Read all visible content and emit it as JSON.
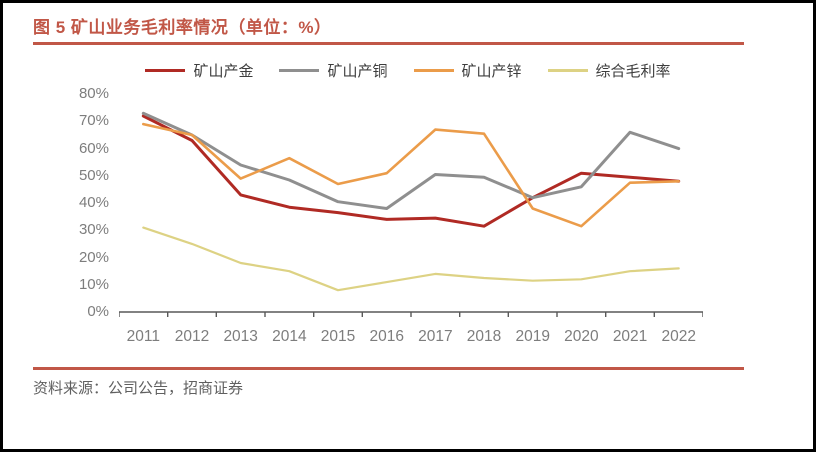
{
  "figure": {
    "title": "图 5 矿山业务毛利率情况（单位：%）",
    "source": "资料来源：公司公告，招商证券",
    "accent_color": "#c15747"
  },
  "chart_data": {
    "type": "line",
    "title": "图 5 矿山业务毛利率情况（单位：%）",
    "categories": [
      "2011",
      "2012",
      "2013",
      "2014",
      "2015",
      "2016",
      "2017",
      "2018",
      "2019",
      "2020",
      "2021",
      "2022"
    ],
    "series": [
      {
        "name": "矿山产金",
        "color": "#b02a24",
        "values": [
          72,
          63,
          43,
          38.5,
          36.5,
          34,
          34.5,
          31.5,
          42,
          51,
          49.5,
          48
        ]
      },
      {
        "name": "矿山产铜",
        "color": "#8f8f8f",
        "values": [
          73,
          65,
          54,
          48.5,
          40.5,
          38,
          50.5,
          49.5,
          42,
          46,
          66,
          60
        ]
      },
      {
        "name": "矿山产锌",
        "color": "#eb9c4a",
        "values": [
          69,
          65,
          49,
          56.5,
          47,
          51,
          67,
          65.5,
          38,
          31.5,
          47.5,
          48
        ]
      },
      {
        "name": "综合毛利率",
        "color": "#ddd284",
        "values": [
          31,
          25,
          18,
          15,
          8,
          11,
          14,
          12.5,
          11.5,
          12,
          15,
          16
        ]
      }
    ],
    "xlabel": "",
    "ylabel": "",
    "ylim": [
      0,
      80
    ],
    "y_tick_step": 10,
    "y_ticks": [
      "0%",
      "10%",
      "20%",
      "30%",
      "40%",
      "50%",
      "60%",
      "70%",
      "80%"
    ],
    "grid": false,
    "legend_position": "top"
  }
}
